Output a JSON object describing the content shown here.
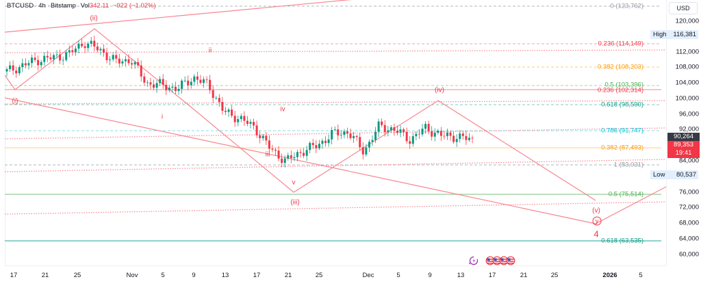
{
  "legend": {
    "symbol": "BTCUSD",
    "interval": "4h",
    "exchange": "Bitstamp",
    "vol_label": "Vol",
    "vol_value": "342.11",
    "change": "−922 (−1.02%)"
  },
  "price_axis": {
    "currency": "USD",
    "ticks": [
      "120,000",
      "112,000",
      "108,000",
      "104,000",
      "100,000",
      "96,000",
      "92,000",
      "84,000",
      "76,000",
      "72,000",
      "68,000",
      "64,000",
      "60,000"
    ],
    "high_label": "High",
    "high_value": "116,381",
    "low_label": "Low",
    "low_value": "80,537",
    "prev_price": "90,264",
    "last_price": "89,353",
    "countdown": "19:41",
    "last_price_color": "#f23645",
    "prev_price_color": "#363a45"
  },
  "time_axis": {
    "ticks": [
      {
        "label": "17",
        "bold": false
      },
      {
        "label": "21",
        "bold": false
      },
      {
        "label": "25",
        "bold": false
      },
      {
        "label": "Nov",
        "bold": false
      },
      {
        "label": "5",
        "bold": false
      },
      {
        "label": "9",
        "bold": false
      },
      {
        "label": "13",
        "bold": false
      },
      {
        "label": "17",
        "bold": false
      },
      {
        "label": "21",
        "bold": false
      },
      {
        "label": "25",
        "bold": false
      },
      {
        "label": "Dec",
        "bold": false
      },
      {
        "label": "5",
        "bold": false
      },
      {
        "label": "9",
        "bold": false
      },
      {
        "label": "13",
        "bold": false
      },
      {
        "label": "17",
        "bold": false
      },
      {
        "label": "21",
        "bold": false
      },
      {
        "label": "25",
        "bold": false
      },
      {
        "label": "2026",
        "bold": true
      },
      {
        "label": "5",
        "bold": false
      }
    ]
  },
  "fib_levels": [
    {
      "label": "0 (123,762)",
      "color": "#9598a1"
    },
    {
      "label": "0.236 (114,149)",
      "color": "#f23645"
    },
    {
      "label": "0.382 (108,203)",
      "color": "#ff9800"
    },
    {
      "label": "0.5 (103,396)",
      "color": "#4caf50"
    },
    {
      "label": "0.236 (102,314)",
      "color": "#f23645"
    },
    {
      "label": "0.618 (98,590)",
      "color": "#089981"
    },
    {
      "label": "0.786 (91,747)",
      "color": "#00bcd4"
    },
    {
      "label": "0.382 (87,493)",
      "color": "#ff9800"
    },
    {
      "label": "1 (83,031)",
      "color": "#9598a1"
    },
    {
      "label": "0.5 (75,514)",
      "color": "#4caf50"
    },
    {
      "label": "0.618 (63,535)",
      "color": "#089981"
    }
  ],
  "wave_labels": [
    "(i)",
    "(ii)",
    "(iii)",
    "(iv)",
    "(v)",
    "i",
    "ii",
    "iii",
    "iv",
    "v",
    "y",
    "4"
  ],
  "events": {
    "icons": [
      "earnings-lightning-icon",
      "us-flag-icon",
      "us-flag-icon",
      "us-flag-icon",
      "us-flag-icon"
    ]
  },
  "chart_data": {
    "type": "candlestick",
    "title": "BTCUSD · 4h · Bitstamp",
    "xlabel": "",
    "ylabel": "USD",
    "ylim": [
      58000,
      126000
    ],
    "x_ticks": [
      "17",
      "21",
      "25",
      "Nov",
      "5",
      "9",
      "13",
      "17",
      "21",
      "25",
      "Dec",
      "5",
      "9",
      "13",
      "17",
      "21",
      "25",
      "2026",
      "5"
    ],
    "approx_closes": [
      {
        "x": "Oct 17",
        "y": 107000
      },
      {
        "x": "Oct 19",
        "y": 108500
      },
      {
        "x": "Oct 21",
        "y": 110000
      },
      {
        "x": "Oct 23",
        "y": 110500
      },
      {
        "x": "Oct 25",
        "y": 111500
      },
      {
        "x": "Oct 27",
        "y": 114500
      },
      {
        "x": "Oct 29",
        "y": 112500
      },
      {
        "x": "Oct 31",
        "y": 109500
      },
      {
        "x": "Nov 2",
        "y": 110000
      },
      {
        "x": "Nov 4",
        "y": 104000
      },
      {
        "x": "Nov 6",
        "y": 103500
      },
      {
        "x": "Nov 8",
        "y": 102500
      },
      {
        "x": "Nov 10",
        "y": 105500
      },
      {
        "x": "Nov 12",
        "y": 103500
      },
      {
        "x": "Nov 14",
        "y": 96500
      },
      {
        "x": "Nov 16",
        "y": 95000
      },
      {
        "x": "Nov 18",
        "y": 92500
      },
      {
        "x": "Nov 20",
        "y": 87000
      },
      {
        "x": "Nov 21",
        "y": 84000
      },
      {
        "x": "Nov 23",
        "y": 86500
      },
      {
        "x": "Nov 25",
        "y": 88000
      },
      {
        "x": "Nov 27",
        "y": 91000
      },
      {
        "x": "Nov 29",
        "y": 91500
      },
      {
        "x": "Dec 1",
        "y": 86500
      },
      {
        "x": "Dec 3",
        "y": 93000
      },
      {
        "x": "Dec 5",
        "y": 92000
      },
      {
        "x": "Dec 7",
        "y": 89500
      },
      {
        "x": "Dec 9",
        "y": 92500
      },
      {
        "x": "Dec 11",
        "y": 90500
      },
      {
        "x": "Dec 13",
        "y": 90300
      },
      {
        "x": "Dec 14",
        "y": 89353
      }
    ],
    "high": 116381,
    "low": 80537,
    "last": 89353,
    "annotations": [
      "Fibonacci retracement/extension levels",
      "Elliott wave labels (i)-(v), i-v",
      "Projected wave path to (v)/y/4 near 68,000 by ~Dec 30"
    ]
  }
}
